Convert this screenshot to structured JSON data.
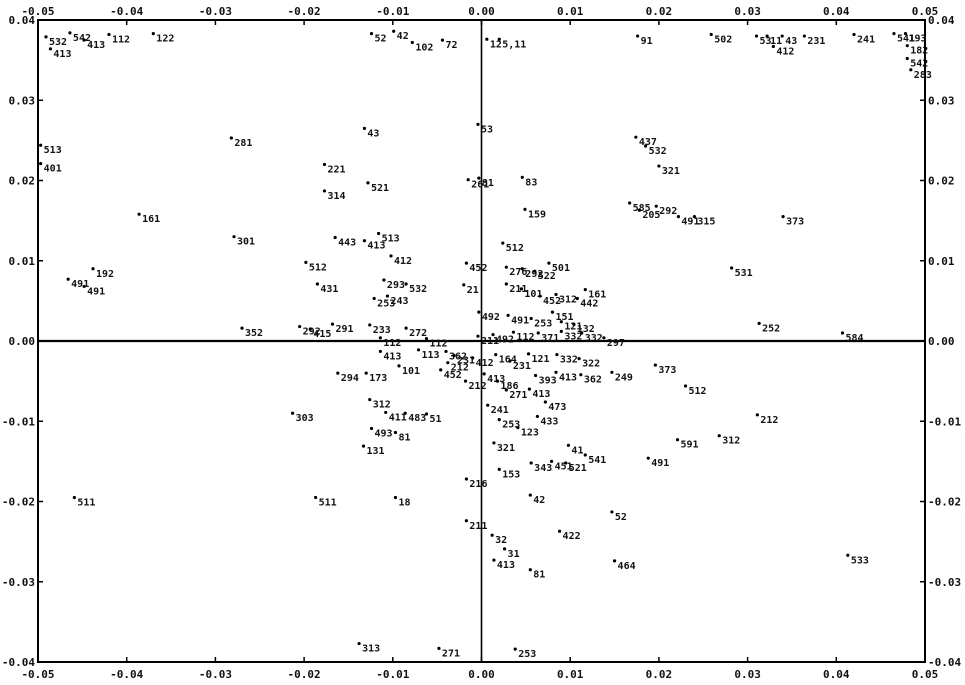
{
  "chart_data": {
    "type": "scatter",
    "title": "",
    "xlabel": "",
    "ylabel": "",
    "xlim": [
      -0.05,
      0.05
    ],
    "ylim": [
      -0.04,
      0.04
    ],
    "grid": false,
    "axis_lines_at_zero": true,
    "x_ticks_top": [
      "-0.05",
      "-0.04",
      "-0.03",
      "-0.02",
      "-0.01",
      "0.00",
      "0.01",
      "0.02",
      "0.03",
      "0.04",
      "0.05"
    ],
    "x_ticks_bottom": [
      "-0.05",
      "-0.04",
      "-0.03",
      "-0.02",
      "-0.01",
      "0.00",
      "0.01",
      "0.02",
      "0.03",
      "0.04",
      "0.05"
    ],
    "y_ticks_left": [
      "0.04",
      "0.03",
      "0.02",
      "0.01",
      "0.00",
      "-0.01",
      "-0.02",
      "-0.03",
      "-0.04"
    ],
    "y_ticks_right": [
      "0.04",
      "0.03",
      "0.02",
      "0.01",
      "0.00",
      "-0.01",
      "-0.02",
      "-0.03",
      "-0.04"
    ],
    "points": [
      {
        "label": "532",
        "x": -0.0491,
        "y": 0.0379
      },
      {
        "label": "413",
        "x": -0.0486,
        "y": 0.0364
      },
      {
        "label": "542",
        "x": -0.0464,
        "y": 0.0384
      },
      {
        "label": "413",
        "x": -0.0448,
        "y": 0.0375
      },
      {
        "label": "112",
        "x": -0.042,
        "y": 0.0382
      },
      {
        "label": "122",
        "x": -0.037,
        "y": 0.0383
      },
      {
        "label": "513",
        "x": -0.0497,
        "y": 0.0244
      },
      {
        "label": "401",
        "x": -0.0497,
        "y": 0.0221
      },
      {
        "label": "281",
        "x": -0.0282,
        "y": 0.0253
      },
      {
        "label": "161",
        "x": -0.0386,
        "y": 0.0158
      },
      {
        "label": "491",
        "x": -0.0448,
        "y": 0.0068
      },
      {
        "label": "491",
        "x": -0.0466,
        "y": 0.0077
      },
      {
        "label": "192",
        "x": -0.0438,
        "y": 0.009
      },
      {
        "label": "511",
        "x": -0.0459,
        "y": -0.0195
      },
      {
        "label": "301",
        "x": -0.0279,
        "y": 0.013
      },
      {
        "label": "352",
        "x": -0.027,
        "y": 0.0016
      },
      {
        "label": "52",
        "x": -0.0124,
        "y": 0.0383
      },
      {
        "label": "42",
        "x": -0.0099,
        "y": 0.0386
      },
      {
        "label": "102",
        "x": -0.0078,
        "y": 0.0372
      },
      {
        "label": "72",
        "x": -0.0044,
        "y": 0.0375
      },
      {
        "label": "12",
        "x": 0.0006,
        "y": 0.0376
      },
      {
        "label": "5,11",
        "x": 0.002,
        "y": 0.0376
      },
      {
        "label": "91",
        "x": 0.0176,
        "y": 0.038
      },
      {
        "label": "502",
        "x": 0.0259,
        "y": 0.0382
      },
      {
        "label": "53",
        "x": 0.031,
        "y": 0.038
      },
      {
        "label": "11",
        "x": 0.0322,
        "y": 0.038
      },
      {
        "label": "43",
        "x": 0.0339,
        "y": 0.038
      },
      {
        "label": "412",
        "x": 0.0329,
        "y": 0.0367
      },
      {
        "label": "231",
        "x": 0.0364,
        "y": 0.038
      },
      {
        "label": "241",
        "x": 0.042,
        "y": 0.0382
      },
      {
        "label": "541",
        "x": 0.0465,
        "y": 0.0383
      },
      {
        "label": "193",
        "x": 0.0478,
        "y": 0.0383
      },
      {
        "label": "182",
        "x": 0.048,
        "y": 0.0368
      },
      {
        "label": "542",
        "x": 0.048,
        "y": 0.0352
      },
      {
        "label": "283",
        "x": 0.0484,
        "y": 0.0338
      },
      {
        "label": "43",
        "x": -0.0132,
        "y": 0.0265
      },
      {
        "label": "221",
        "x": -0.0177,
        "y": 0.022
      },
      {
        "label": "521",
        "x": -0.0128,
        "y": 0.0197
      },
      {
        "label": "314",
        "x": -0.0177,
        "y": 0.0187
      },
      {
        "label": "513",
        "x": -0.0116,
        "y": 0.0134
      },
      {
        "label": "413",
        "x": -0.0132,
        "y": 0.0125
      },
      {
        "label": "443",
        "x": -0.0165,
        "y": 0.0129
      },
      {
        "label": "412",
        "x": -0.0102,
        "y": 0.0106
      },
      {
        "label": "512",
        "x": -0.0198,
        "y": 0.0098
      },
      {
        "label": "431",
        "x": -0.0185,
        "y": 0.0071
      },
      {
        "label": "293",
        "x": -0.011,
        "y": 0.0076
      },
      {
        "label": "253",
        "x": -0.0121,
        "y": 0.0053
      },
      {
        "label": "243",
        "x": -0.0106,
        "y": 0.0056
      },
      {
        "label": "532",
        "x": -0.0085,
        "y": 0.0071
      },
      {
        "label": "53",
        "x": -0.0004,
        "y": 0.027
      },
      {
        "label": "261",
        "x": -0.0015,
        "y": 0.0201
      },
      {
        "label": "81",
        "x": -0.0003,
        "y": 0.0203
      },
      {
        "label": "83",
        "x": 0.0046,
        "y": 0.0204
      },
      {
        "label": "452",
        "x": -0.0017,
        "y": 0.0097
      },
      {
        "label": "21",
        "x": -0.002,
        "y": 0.007
      },
      {
        "label": "159",
        "x": 0.0049,
        "y": 0.0164
      },
      {
        "label": "512",
        "x": 0.0024,
        "y": 0.0122
      },
      {
        "label": "501",
        "x": 0.0076,
        "y": 0.0097
      },
      {
        "label": "276",
        "x": 0.0028,
        "y": 0.0092
      },
      {
        "label": "292",
        "x": 0.0046,
        "y": 0.009
      },
      {
        "label": "522",
        "x": 0.006,
        "y": 0.0087
      },
      {
        "label": "211",
        "x": 0.0028,
        "y": 0.0071
      },
      {
        "label": "101",
        "x": 0.0045,
        "y": 0.0065
      },
      {
        "label": "452",
        "x": 0.0066,
        "y": 0.0056
      },
      {
        "label": "312",
        "x": 0.0084,
        "y": 0.0058
      },
      {
        "label": "161",
        "x": 0.0117,
        "y": 0.0064
      },
      {
        "label": "442",
        "x": 0.0108,
        "y": 0.0053
      },
      {
        "label": "151",
        "x": 0.008,
        "y": 0.0036
      },
      {
        "label": "491",
        "x": 0.003,
        "y": 0.0032
      },
      {
        "label": "253",
        "x": 0.0056,
        "y": 0.0028
      },
      {
        "label": "121",
        "x": 0.009,
        "y": 0.0024
      },
      {
        "label": "132",
        "x": 0.0104,
        "y": 0.0021
      },
      {
        "label": "112",
        "x": 0.0036,
        "y": 0.0011
      },
      {
        "label": "371",
        "x": 0.0064,
        "y": 0.001
      },
      {
        "label": "332",
        "x": 0.009,
        "y": 0.0012
      },
      {
        "label": "332",
        "x": 0.0113,
        "y": 0.001
      },
      {
        "label": "492",
        "x": 0.0013,
        "y": 0.0008
      },
      {
        "label": "297",
        "x": 0.0138,
        "y": 0.0004
      },
      {
        "label": "437",
        "x": 0.0174,
        "y": 0.0254
      },
      {
        "label": "532",
        "x": 0.0185,
        "y": 0.0243
      },
      {
        "label": "321",
        "x": 0.02,
        "y": 0.0218
      },
      {
        "label": "585",
        "x": 0.0167,
        "y": 0.0172
      },
      {
        "label": "205",
        "x": 0.0178,
        "y": 0.0163
      },
      {
        "label": "292",
        "x": 0.0197,
        "y": 0.0168
      },
      {
        "label": "491",
        "x": 0.0222,
        "y": 0.0155
      },
      {
        "label": "315",
        "x": 0.024,
        "y": 0.0155
      },
      {
        "label": "373",
        "x": 0.034,
        "y": 0.0155
      },
      {
        "label": "531",
        "x": 0.0282,
        "y": 0.0091
      },
      {
        "label": "252",
        "x": 0.0313,
        "y": 0.0022
      },
      {
        "label": "584",
        "x": 0.0407,
        "y": 0.001
      },
      {
        "label": "292",
        "x": -0.0205,
        "y": 0.0018
      },
      {
        "label": "415",
        "x": -0.0193,
        "y": 0.0015
      },
      {
        "label": "291",
        "x": -0.0168,
        "y": 0.0021
      },
      {
        "label": "233",
        "x": -0.0126,
        "y": 0.002
      },
      {
        "label": "112",
        "x": -0.0114,
        "y": 0.0004
      },
      {
        "label": "272",
        "x": -0.0085,
        "y": 0.0016
      },
      {
        "label": "112",
        "x": -0.0062,
        "y": 0.0003
      },
      {
        "label": "492",
        "x": -0.0003,
        "y": 0.0036
      },
      {
        "label": "211",
        "x": -0.0004,
        "y": 0.0006
      },
      {
        "label": "413",
        "x": -0.0114,
        "y": -0.0013
      },
      {
        "label": "113",
        "x": -0.0071,
        "y": -0.0011
      },
      {
        "label": "101",
        "x": -0.0093,
        "y": -0.0031
      },
      {
        "label": "362",
        "x": -0.004,
        "y": -0.0013
      },
      {
        "label": "231",
        "x": -0.0031,
        "y": -0.0018
      },
      {
        "label": "212",
        "x": -0.0038,
        "y": -0.0027
      },
      {
        "label": "452",
        "x": -0.0046,
        "y": -0.0036
      },
      {
        "label": "412",
        "x": -0.001,
        "y": -0.0021
      },
      {
        "label": "212",
        "x": -0.0018,
        "y": -0.005
      },
      {
        "label": "413",
        "x": 0.0003,
        "y": -0.0041
      },
      {
        "label": "294",
        "x": -0.0162,
        "y": -0.004
      },
      {
        "label": "173",
        "x": -0.013,
        "y": -0.004
      },
      {
        "label": "312",
        "x": -0.0126,
        "y": -0.0073
      },
      {
        "label": "411",
        "x": -0.0108,
        "y": -0.0089
      },
      {
        "label": "493",
        "x": -0.0124,
        "y": -0.0109
      },
      {
        "label": "483",
        "x": -0.0086,
        "y": -0.009
      },
      {
        "label": "51",
        "x": -0.0062,
        "y": -0.0091
      },
      {
        "label": "81",
        "x": -0.0097,
        "y": -0.0114
      },
      {
        "label": "131",
        "x": -0.0133,
        "y": -0.0131
      },
      {
        "label": "303",
        "x": -0.0213,
        "y": -0.009
      },
      {
        "label": "511",
        "x": -0.0187,
        "y": -0.0195
      },
      {
        "label": "18",
        "x": -0.0097,
        "y": -0.0195
      },
      {
        "label": "164",
        "x": 0.0016,
        "y": -0.0017
      },
      {
        "label": "231",
        "x": 0.0032,
        "y": -0.0025
      },
      {
        "label": "121",
        "x": 0.0053,
        "y": -0.0016
      },
      {
        "label": "332",
        "x": 0.0085,
        "y": -0.0017
      },
      {
        "label": "322",
        "x": 0.011,
        "y": -0.0022
      },
      {
        "label": "413",
        "x": 0.0084,
        "y": -0.0039
      },
      {
        "label": "362",
        "x": 0.0112,
        "y": -0.0042
      },
      {
        "label": "393",
        "x": 0.0061,
        "y": -0.0043
      },
      {
        "label": "186",
        "x": 0.0018,
        "y": -0.005
      },
      {
        "label": "271",
        "x": 0.0028,
        "y": -0.0061
      },
      {
        "label": "413",
        "x": 0.0054,
        "y": -0.006
      },
      {
        "label": "241",
        "x": 0.0007,
        "y": -0.008
      },
      {
        "label": "253",
        "x": 0.002,
        "y": -0.0098
      },
      {
        "label": "473",
        "x": 0.0072,
        "y": -0.0076
      },
      {
        "label": "433",
        "x": 0.0063,
        "y": -0.0094
      },
      {
        "label": "123",
        "x": 0.0041,
        "y": -0.0108
      },
      {
        "label": "321",
        "x": 0.0014,
        "y": -0.0127
      },
      {
        "label": "153",
        "x": 0.002,
        "y": -0.016
      },
      {
        "label": "343",
        "x": 0.0056,
        "y": -0.0152
      },
      {
        "label": "451",
        "x": 0.0079,
        "y": -0.015
      },
      {
        "label": "521",
        "x": 0.0095,
        "y": -0.0152
      },
      {
        "label": "541",
        "x": 0.0117,
        "y": -0.0142
      },
      {
        "label": "41",
        "x": 0.0098,
        "y": -0.013
      },
      {
        "label": "249",
        "x": 0.0147,
        "y": -0.0039
      },
      {
        "label": "373",
        "x": 0.0196,
        "y": -0.003
      },
      {
        "label": "512",
        "x": 0.023,
        "y": -0.0056
      },
      {
        "label": "591",
        "x": 0.0221,
        "y": -0.0123
      },
      {
        "label": "312",
        "x": 0.0268,
        "y": -0.0118
      },
      {
        "label": "212",
        "x": 0.0311,
        "y": -0.0092
      },
      {
        "label": "491",
        "x": 0.0188,
        "y": -0.0146
      },
      {
        "label": "216",
        "x": -0.0017,
        "y": -0.0172
      },
      {
        "label": "211",
        "x": -0.0017,
        "y": -0.0224
      },
      {
        "label": "42",
        "x": 0.0055,
        "y": -0.0192
      },
      {
        "label": "52",
        "x": 0.0147,
        "y": -0.0213
      },
      {
        "label": "422",
        "x": 0.0088,
        "y": -0.0237
      },
      {
        "label": "32",
        "x": 0.0012,
        "y": -0.0242
      },
      {
        "label": "31",
        "x": 0.0026,
        "y": -0.0259
      },
      {
        "label": "413",
        "x": 0.0014,
        "y": -0.0273
      },
      {
        "label": "81",
        "x": 0.0055,
        "y": -0.0285
      },
      {
        "label": "464",
        "x": 0.015,
        "y": -0.0274
      },
      {
        "label": "533",
        "x": 0.0413,
        "y": -0.0267
      },
      {
        "label": "313",
        "x": -0.0138,
        "y": -0.0377
      },
      {
        "label": "271",
        "x": -0.0048,
        "y": -0.0383
      },
      {
        "label": "253",
        "x": 0.0038,
        "y": -0.0384
      }
    ]
  }
}
